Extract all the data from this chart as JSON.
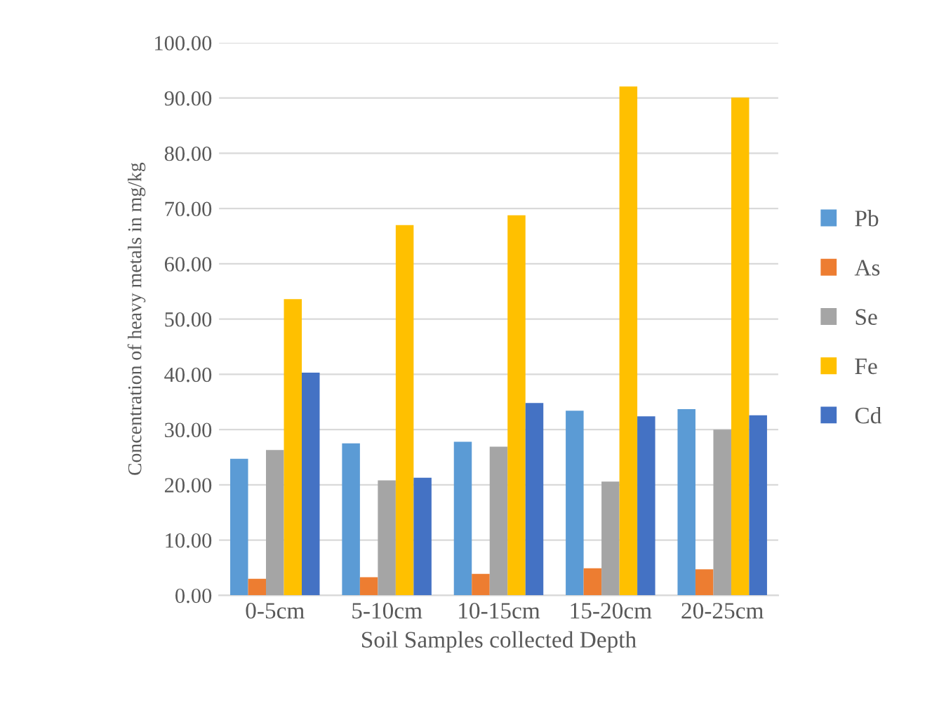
{
  "chart_data": {
    "type": "bar",
    "xlabel": "Soil Samples collected Depth",
    "ylabel": "Concentration of heavy metals in mg/kg",
    "categories": [
      "0-5cm",
      "5-10cm",
      "10-15cm",
      "15-20cm",
      "20-25cm"
    ],
    "series": [
      {
        "name": "Pb",
        "color": "#5b9bd5",
        "values": [
          24.7,
          27.5,
          27.8,
          33.4,
          33.7
        ]
      },
      {
        "name": "As",
        "color": "#ed7d31",
        "values": [
          3.0,
          3.3,
          3.9,
          4.9,
          4.7
        ]
      },
      {
        "name": "Se",
        "color": "#a5a5a5",
        "values": [
          26.3,
          20.8,
          26.9,
          20.6,
          30.0
        ]
      },
      {
        "name": "Fe",
        "color": "#ffc000",
        "values": [
          53.6,
          67.0,
          68.8,
          92.1,
          90.1
        ]
      },
      {
        "name": "Cd",
        "color": "#4472c4",
        "values": [
          40.3,
          21.3,
          34.8,
          32.4,
          32.6
        ]
      }
    ],
    "ylim": [
      0,
      100
    ],
    "yticks": [
      {
        "value": 0,
        "label": "0.00"
      },
      {
        "value": 10,
        "label": "10.00"
      },
      {
        "value": 20,
        "label": "20.00"
      },
      {
        "value": 30,
        "label": "30.00"
      },
      {
        "value": 40,
        "label": "40.00"
      },
      {
        "value": 50,
        "label": "50.00"
      },
      {
        "value": 60,
        "label": "60.00"
      },
      {
        "value": 70,
        "label": "70.00"
      },
      {
        "value": 80,
        "label": "80.00"
      },
      {
        "value": 90,
        "label": "90.00"
      },
      {
        "value": 100,
        "label": "100.00"
      }
    ],
    "grid": "y",
    "legend": "right"
  }
}
